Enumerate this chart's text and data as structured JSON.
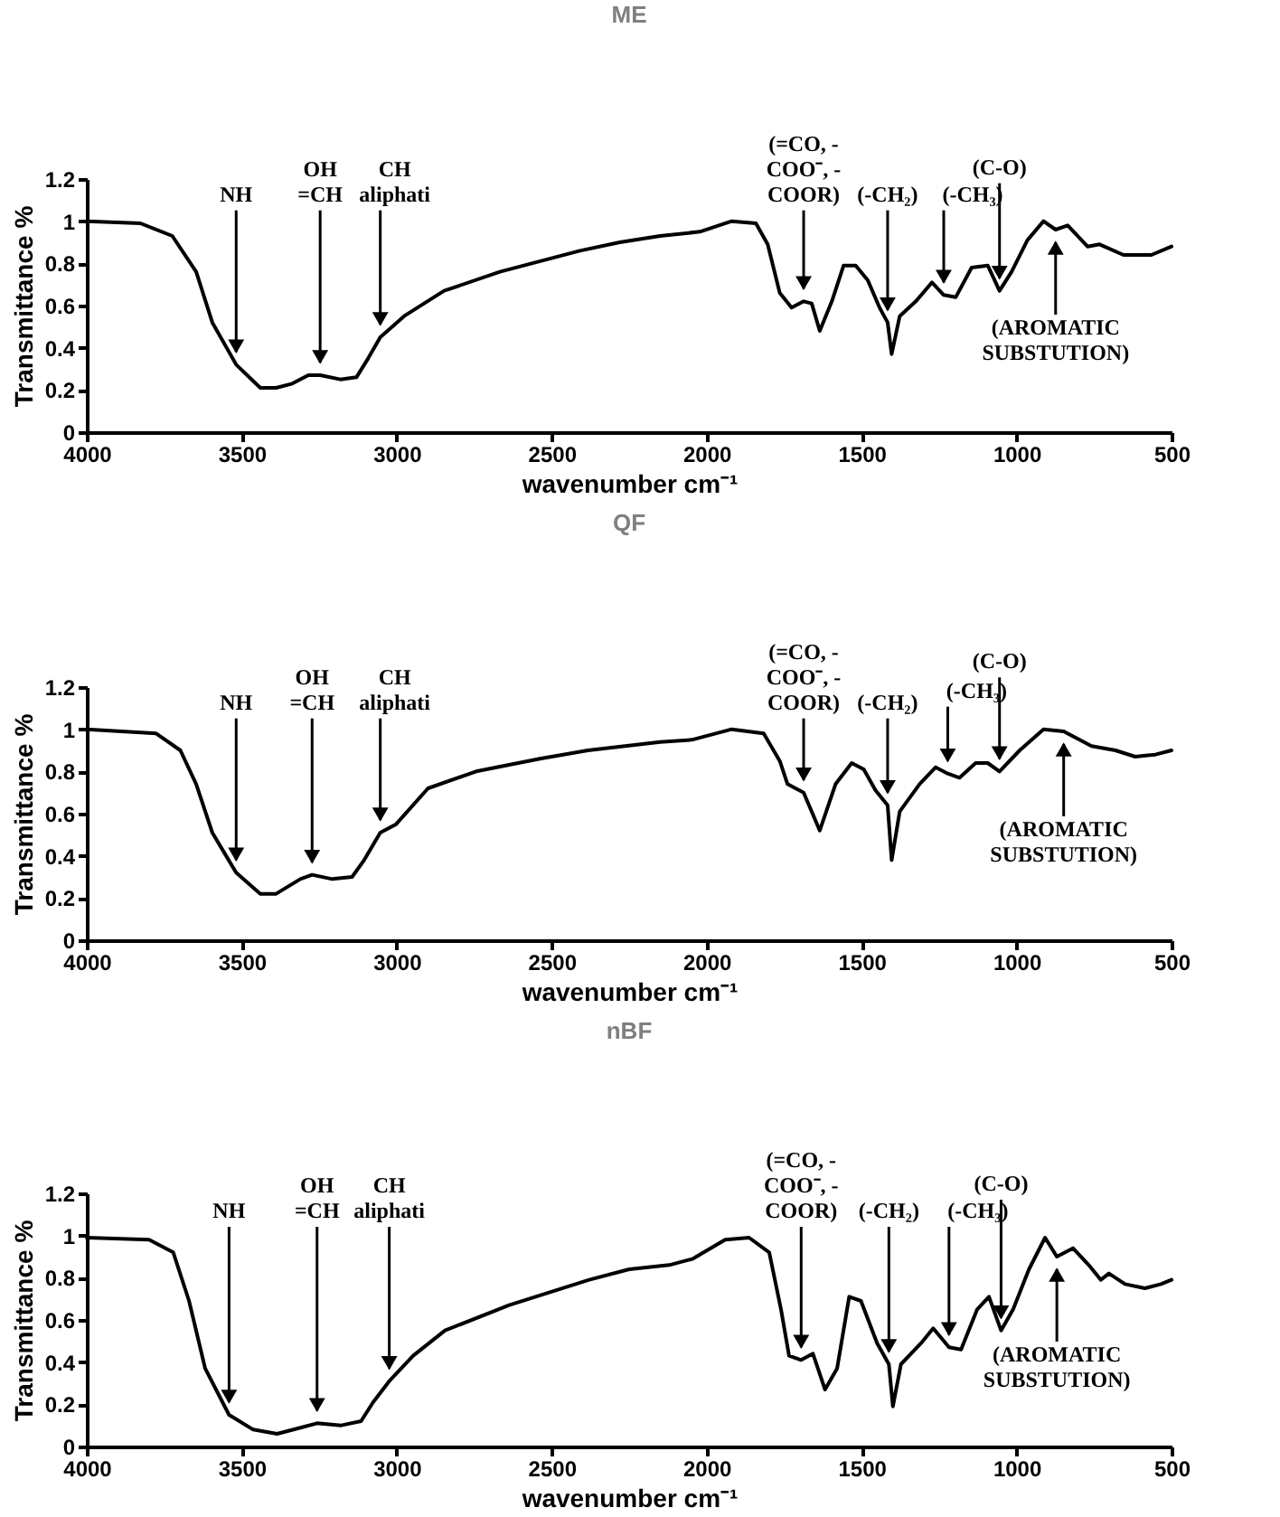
{
  "chart_data": [
    {
      "type": "line",
      "title": "ME",
      "xlabel": "wavenumber cm⁻¹",
      "ylabel": "Transmittance %",
      "color": "#000000",
      "xlim": [
        4000,
        500
      ],
      "ylim": [
        0,
        1.2
      ],
      "xticks": [
        4000,
        3500,
        3000,
        2500,
        2000,
        1500,
        1000,
        500
      ],
      "yticks": [
        0,
        0.2,
        0.4,
        0.6,
        0.8,
        1,
        1.2
      ],
      "grid": false,
      "x": [
        4000,
        3827,
        3724,
        3647,
        3595,
        3518,
        3440,
        3389,
        3337,
        3285,
        3247,
        3182,
        3130,
        3092,
        3053,
        2976,
        2847,
        2667,
        2409,
        2280,
        2150,
        2022,
        1919,
        1841,
        1803,
        1764,
        1726,
        1687,
        1661,
        1635,
        1596,
        1558,
        1519,
        1480,
        1442,
        1416,
        1403,
        1377,
        1325,
        1273,
        1235,
        1196,
        1145,
        1093,
        1055,
        1016,
        965,
        913,
        874,
        835,
        771,
        732,
        655,
        565,
        500
      ],
      "values": [
        1.0,
        0.99,
        0.93,
        0.76,
        0.52,
        0.32,
        0.21,
        0.21,
        0.23,
        0.27,
        0.27,
        0.25,
        0.26,
        0.35,
        0.45,
        0.55,
        0.67,
        0.76,
        0.86,
        0.9,
        0.93,
        0.95,
        1.0,
        0.99,
        0.89,
        0.66,
        0.59,
        0.62,
        0.61,
        0.48,
        0.62,
        0.79,
        0.79,
        0.72,
        0.59,
        0.52,
        0.37,
        0.55,
        0.62,
        0.71,
        0.65,
        0.64,
        0.78,
        0.79,
        0.67,
        0.76,
        0.91,
        1.0,
        0.96,
        0.98,
        0.88,
        0.89,
        0.84,
        0.84,
        0.88
      ],
      "annotations": [
        {
          "text": "NH",
          "x": 3518,
          "y": 0.32
        },
        {
          "text": "OH\n=CH",
          "x": 3247,
          "y": 0.27
        },
        {
          "text": "CH\naliphati",
          "x": 3053,
          "y": 0.45
        },
        {
          "text": "(=CO, -\nCOO⁻, -\nCOOR)",
          "x": 1687,
          "y": 0.62
        },
        {
          "text": "(-CH₂)",
          "x": 1416,
          "y": 0.52
        },
        {
          "text": "(-CH₃)",
          "x": 1235,
          "y": 0.65
        },
        {
          "text": "(C-O)",
          "x": 1055,
          "y": 0.67
        },
        {
          "text": "(AROMATIC\nSUBSTUTION)",
          "x": 874,
          "y": 0.96
        }
      ]
    },
    {
      "type": "line",
      "title": "QF",
      "xlabel": "wavenumber cm⁻¹",
      "ylabel": "Transmittance %",
      "color": "#000000",
      "xlim": [
        4000,
        500
      ],
      "ylim": [
        0,
        1.2
      ],
      "xticks": [
        4000,
        3500,
        3000,
        2500,
        2000,
        1500,
        1000,
        500
      ],
      "yticks": [
        0,
        0.2,
        0.4,
        0.6,
        0.8,
        1,
        1.2
      ],
      "grid": false,
      "x": [
        4000,
        3776,
        3698,
        3647,
        3595,
        3518,
        3440,
        3389,
        3311,
        3273,
        3208,
        3144,
        3105,
        3053,
        3002,
        2899,
        2744,
        2538,
        2383,
        2150,
        2048,
        1919,
        1816,
        1764,
        1739,
        1687,
        1635,
        1584,
        1532,
        1493,
        1455,
        1416,
        1403,
        1377,
        1313,
        1261,
        1222,
        1184,
        1132,
        1093,
        1055,
        990,
        913,
        848,
        758,
        681,
        617,
        552,
        500
      ],
      "values": [
        1.0,
        0.98,
        0.9,
        0.74,
        0.51,
        0.32,
        0.22,
        0.22,
        0.29,
        0.31,
        0.29,
        0.3,
        0.38,
        0.51,
        0.55,
        0.72,
        0.8,
        0.86,
        0.9,
        0.94,
        0.95,
        1.0,
        0.98,
        0.85,
        0.74,
        0.7,
        0.52,
        0.74,
        0.84,
        0.81,
        0.71,
        0.64,
        0.38,
        0.61,
        0.74,
        0.82,
        0.79,
        0.77,
        0.84,
        0.84,
        0.8,
        0.9,
        1.0,
        0.99,
        0.92,
        0.9,
        0.87,
        0.88,
        0.9
      ],
      "annotations": [
        {
          "text": "NH",
          "x": 3518,
          "y": 0.32
        },
        {
          "text": "OH\n=CH",
          "x": 3273,
          "y": 0.31
        },
        {
          "text": "CH\naliphati",
          "x": 3053,
          "y": 0.51
        },
        {
          "text": "(=CO, -\nCOO⁻, -\nCOOR)",
          "x": 1687,
          "y": 0.7
        },
        {
          "text": "(-CH₂)",
          "x": 1416,
          "y": 0.64
        },
        {
          "text": "(-CH₃)",
          "x": 1222,
          "y": 0.79
        },
        {
          "text": "(C-O)",
          "x": 1055,
          "y": 0.8
        },
        {
          "text": "(AROMATIC\nSUBSTUTION)",
          "x": 848,
          "y": 0.99
        }
      ]
    },
    {
      "type": "line",
      "title": "nBF",
      "xlabel": "wavenumber cm⁻¹",
      "ylabel": "Transmittance %",
      "color": "#000000",
      "xlim": [
        4000,
        500
      ],
      "ylim": [
        0,
        1.2
      ],
      "xticks": [
        4000,
        3500,
        3000,
        2500,
        2000,
        1500,
        1000,
        500
      ],
      "yticks": [
        0,
        0.2,
        0.4,
        0.6,
        0.8,
        1,
        1.2
      ],
      "grid": false,
      "x": [
        4000,
        3799,
        3721,
        3670,
        3618,
        3541,
        3463,
        3386,
        3308,
        3257,
        3179,
        3115,
        3076,
        3024,
        2947,
        2844,
        2637,
        2379,
        2250,
        2121,
        2044,
        1940,
        1863,
        1798,
        1760,
        1734,
        1695,
        1657,
        1618,
        1579,
        1540,
        1502,
        1450,
        1412,
        1399,
        1373,
        1308,
        1269,
        1218,
        1179,
        1127,
        1089,
        1050,
        1011,
        960,
        908,
        870,
        818,
        767,
        728,
        702,
        650,
        586,
        534,
        500
      ],
      "values": [
        0.99,
        0.98,
        0.92,
        0.69,
        0.37,
        0.15,
        0.08,
        0.06,
        0.09,
        0.11,
        0.1,
        0.12,
        0.21,
        0.31,
        0.43,
        0.55,
        0.67,
        0.79,
        0.84,
        0.86,
        0.89,
        0.98,
        0.99,
        0.92,
        0.65,
        0.43,
        0.41,
        0.44,
        0.27,
        0.37,
        0.71,
        0.69,
        0.49,
        0.39,
        0.19,
        0.39,
        0.49,
        0.56,
        0.47,
        0.46,
        0.65,
        0.71,
        0.55,
        0.65,
        0.84,
        0.99,
        0.9,
        0.94,
        0.86,
        0.79,
        0.82,
        0.77,
        0.75,
        0.77,
        0.79
      ],
      "annotations": [
        {
          "text": "NH",
          "x": 3541,
          "y": 0.15
        },
        {
          "text": "OH\n=CH",
          "x": 3257,
          "y": 0.11
        },
        {
          "text": "CH\naliphati",
          "x": 3024,
          "y": 0.31
        },
        {
          "text": "(=CO, -\nCOO⁻, -\nCOOR)",
          "x": 1695,
          "y": 0.41
        },
        {
          "text": "(-CH₂)",
          "x": 1412,
          "y": 0.39
        },
        {
          "text": "(-CH₃)",
          "x": 1218,
          "y": 0.47
        },
        {
          "text": "(C-O)",
          "x": 1050,
          "y": 0.55
        },
        {
          "text": "(AROMATIC\nSUBSTUTION)",
          "x": 870,
          "y": 0.9
        }
      ]
    }
  ]
}
